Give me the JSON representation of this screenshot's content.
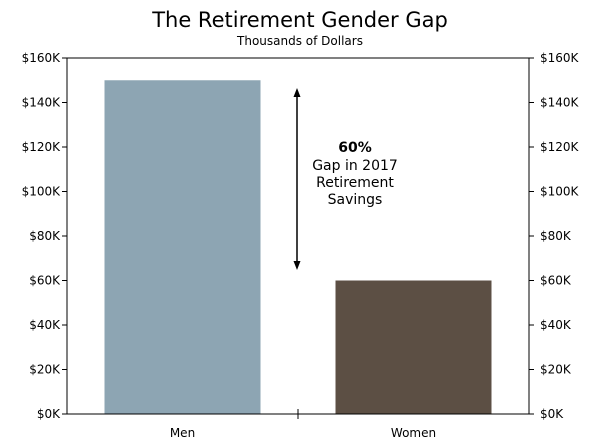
{
  "chart_data": {
    "type": "bar",
    "title": "The Retirement Gender Gap",
    "subtitle": "Thousands of Dollars",
    "categories": [
      "Men",
      "Women"
    ],
    "values": [
      150000,
      60000
    ],
    "colors": [
      "#8da5b3",
      "#5c4f44"
    ],
    "ylim": [
      0,
      160000
    ],
    "yticks": [
      0,
      20000,
      40000,
      60000,
      80000,
      100000,
      120000,
      140000,
      160000
    ],
    "ytick_labels": [
      "$0K",
      "$20K",
      "$40K",
      "$60K",
      "$80K",
      "$100K",
      "$120K",
      "$140K",
      "$160K"
    ],
    "xlabel": "",
    "ylabel": "",
    "grid": false,
    "legend": "none",
    "annotation": {
      "percent": "60%",
      "lines": [
        "Gap in 2017",
        "Retirement",
        "Savings"
      ]
    }
  }
}
